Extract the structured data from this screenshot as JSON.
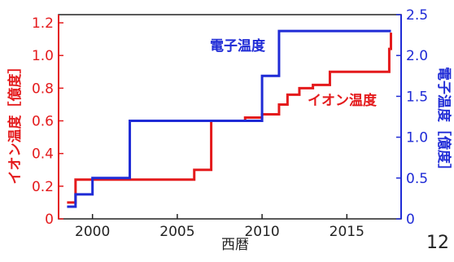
{
  "chart_data": {
    "type": "line",
    "title": "",
    "xlabel": "西暦",
    "ylabel_left": "イオン温度［億度］",
    "ylabel_right": "電子温度［億度］",
    "xlim": [
      1998,
      2018.2
    ],
    "xticks": [
      2000,
      2005,
      2010,
      2015
    ],
    "ylim_left": [
      0,
      1.25
    ],
    "yticks_left": [
      0,
      0.2,
      0.4,
      0.6,
      0.8,
      1.0,
      1.2
    ],
    "ylim_right": [
      0,
      2.5
    ],
    "yticks_right": [
      0,
      0.5,
      1.0,
      1.5,
      2.0,
      2.5
    ],
    "grid": false,
    "series": [
      {
        "name": "イオン温度",
        "axis": "left",
        "color": "#e41a1c",
        "step": true,
        "x": [
          1998.5,
          1998.9,
          1999.0,
          2006.0,
          2007.0,
          2009.0,
          2010.0,
          2011.0,
          2011.5,
          2012.2,
          2013.0,
          2014.0,
          2017.5,
          2017.6
        ],
        "y": [
          0.1,
          0.1,
          0.24,
          0.3,
          0.6,
          0.62,
          0.64,
          0.7,
          0.76,
          0.8,
          0.82,
          0.9,
          1.04,
          1.14
        ]
      },
      {
        "name": "電子温度",
        "axis": "right",
        "color": "#1f2bd6",
        "step": true,
        "x": [
          1998.5,
          1999.0,
          2000.0,
          2002.2,
          2010.0,
          2011.0,
          2017.6
        ],
        "y": [
          0.15,
          0.3,
          0.5,
          1.2,
          1.75,
          2.3,
          2.3
        ]
      }
    ],
    "annotations": [
      {
        "text": "電子温度",
        "color": "#1f2bd6"
      },
      {
        "text": "イオン温度",
        "color": "#e41a1c"
      }
    ]
  },
  "page_number": "12"
}
